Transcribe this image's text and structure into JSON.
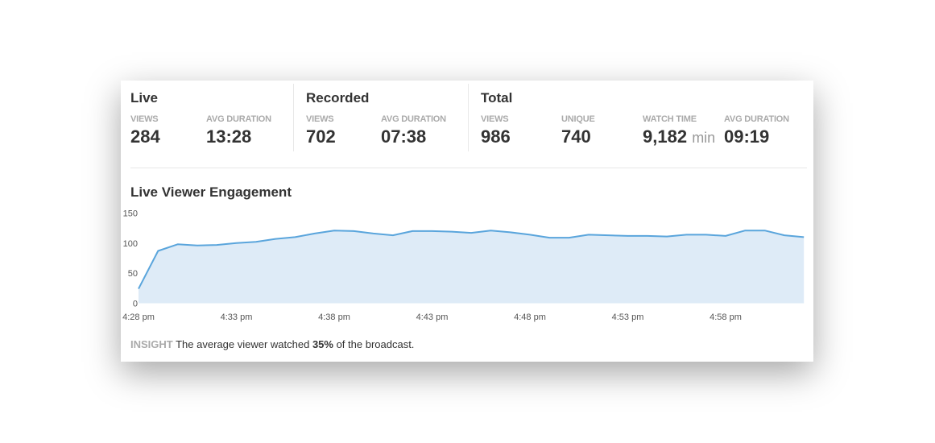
{
  "summary": {
    "live": {
      "title": "Live",
      "stats": [
        {
          "label": "VIEWS",
          "value": "284"
        },
        {
          "label": "AVG DURATION",
          "value": "13:28"
        }
      ]
    },
    "recorded": {
      "title": "Recorded",
      "stats": [
        {
          "label": "VIEWS",
          "value": "702"
        },
        {
          "label": "AVG DURATION",
          "value": "07:38"
        }
      ]
    },
    "total": {
      "title": "Total",
      "stats": [
        {
          "label": "VIEWS",
          "value": "986"
        },
        {
          "label": "UNIQUE",
          "value": "740"
        },
        {
          "label": "WATCH TIME",
          "value": "9,182",
          "unit": "min"
        },
        {
          "label": "AVG DURATION",
          "value": "09:19"
        }
      ]
    }
  },
  "insight": {
    "tag": "INSIGHT",
    "before": " The average viewer watched ",
    "highlight": "35%",
    "after": " of the broadcast."
  },
  "colors": {
    "line": "#5aa5dc",
    "fill": "#deebf7"
  },
  "chart_data": {
    "type": "area",
    "title": "Live Viewer Engagement",
    "x_start": "4:28 pm",
    "x_interval_minutes": 1,
    "x_ticks": [
      "4:28 pm",
      "4:33 pm",
      "4:38 pm",
      "4:43 pm",
      "4:48 pm",
      "4:53 pm",
      "4:58 pm"
    ],
    "y_ticks": [
      0,
      50,
      100,
      150
    ],
    "ylim": [
      0,
      150
    ],
    "grid": false,
    "values": [
      24,
      87,
      98,
      96,
      97,
      100,
      102,
      107,
      110,
      116,
      121,
      120,
      116,
      113,
      120,
      120,
      119,
      117,
      121,
      118,
      114,
      109,
      109,
      114,
      113,
      112,
      112,
      111,
      114,
      114,
      112,
      121,
      121,
      113,
      110
    ]
  }
}
